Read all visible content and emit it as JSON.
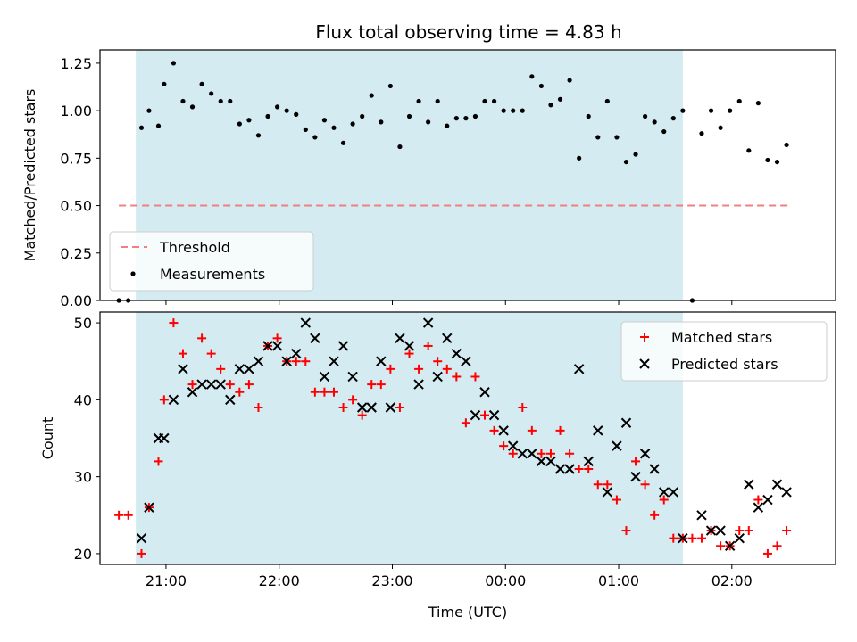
{
  "chart_data": [
    {
      "type": "scatter",
      "title": "Flux total observing time = 4.83 h",
      "xlabel": "",
      "ylabel": "Matched/Predicted stars",
      "ylim": [
        0,
        1.32
      ],
      "xlim": [
        "20:25",
        "02:55"
      ],
      "yticks": [
        0.0,
        0.25,
        0.5,
        0.75,
        1.0,
        1.25
      ],
      "ytick_labels": [
        "0.00",
        "0.25",
        "0.50",
        "0.75",
        "1.00",
        "1.25"
      ],
      "shaded_interval": [
        "20:44",
        "01:34"
      ],
      "shade_color": "#d3ebf1",
      "legend_position": "lower-left",
      "threshold": {
        "name": "Threshold",
        "value": 0.5,
        "x_range": [
          "20:35",
          "02:30"
        ],
        "color": "#f08080",
        "style": "dashed"
      },
      "series": [
        {
          "name": "Measurements",
          "color": "#000000",
          "marker": "dot",
          "x": [
            "20:35",
            "20:40",
            "20:47",
            "20:51",
            "20:56",
            "20:59",
            "21:04",
            "21:09",
            "21:14",
            "21:19",
            "21:24",
            "21:29",
            "21:34",
            "21:39",
            "21:44",
            "21:49",
            "21:54",
            "21:59",
            "22:04",
            "22:09",
            "22:14",
            "22:19",
            "22:24",
            "22:29",
            "22:34",
            "22:39",
            "22:44",
            "22:49",
            "22:54",
            "22:59",
            "23:04",
            "23:09",
            "23:14",
            "23:19",
            "23:24",
            "23:29",
            "23:34",
            "23:39",
            "23:44",
            "23:49",
            "23:54",
            "23:59",
            "00:04",
            "00:09",
            "00:14",
            "00:19",
            "00:24",
            "00:29",
            "00:34",
            "00:39",
            "00:44",
            "00:49",
            "00:54",
            "00:59",
            "01:04",
            "01:09",
            "01:14",
            "01:19",
            "01:24",
            "01:29",
            "01:34",
            "01:39",
            "01:44",
            "01:49",
            "01:54",
            "01:59",
            "02:04",
            "02:09",
            "02:14",
            "02:19",
            "02:24",
            "02:29"
          ],
          "y": [
            0.0,
            0.0,
            0.91,
            1.0,
            0.92,
            1.14,
            1.25,
            1.05,
            1.02,
            1.14,
            1.09,
            1.05,
            1.05,
            0.93,
            0.95,
            0.87,
            0.97,
            1.02,
            1.0,
            0.98,
            0.9,
            0.86,
            0.95,
            0.91,
            0.83,
            0.93,
            0.97,
            1.08,
            0.94,
            1.13,
            0.81,
            0.97,
            1.05,
            0.94,
            1.05,
            0.92,
            0.96,
            0.96,
            0.97,
            1.05,
            1.05,
            1.0,
            1.0,
            1.0,
            1.18,
            1.13,
            1.03,
            1.06,
            1.16,
            0.75,
            0.97,
            0.86,
            1.05,
            0.86,
            0.73,
            0.77,
            0.97,
            0.94,
            0.89,
            0.96,
            1.0,
            0.0,
            0.88,
            1.0,
            0.91,
            1.0,
            1.05,
            0.79,
            1.04,
            0.74,
            0.73,
            0.82
          ]
        }
      ]
    },
    {
      "type": "scatter",
      "title": "",
      "xlabel": "Time (UTC)",
      "ylabel": "Count",
      "ylim": [
        18.6,
        51.4
      ],
      "xlim": [
        "20:25",
        "02:55"
      ],
      "yticks": [
        20,
        30,
        40,
        50
      ],
      "ytick_labels": [
        "20",
        "30",
        "40",
        "50"
      ],
      "xticks": [
        "21:00",
        "22:00",
        "23:00",
        "00:00",
        "01:00",
        "02:00"
      ],
      "xtick_labels": [
        "21:00",
        "22:00",
        "23:00",
        "00:00",
        "01:00",
        "02:00"
      ],
      "shaded_interval": [
        "20:44",
        "01:34"
      ],
      "shade_color": "#d3ebf1",
      "legend_position": "top-right",
      "series": [
        {
          "name": "Matched stars",
          "color": "#ff0000",
          "marker": "plus",
          "x": [
            "20:35",
            "20:40",
            "20:47",
            "20:51",
            "20:56",
            "20:59",
            "21:04",
            "21:09",
            "21:14",
            "21:19",
            "21:24",
            "21:29",
            "21:34",
            "21:39",
            "21:44",
            "21:49",
            "21:54",
            "21:59",
            "22:04",
            "22:09",
            "22:14",
            "22:19",
            "22:24",
            "22:29",
            "22:34",
            "22:39",
            "22:44",
            "22:49",
            "22:54",
            "22:59",
            "23:04",
            "23:09",
            "23:14",
            "23:19",
            "23:24",
            "23:29",
            "23:34",
            "23:39",
            "23:44",
            "23:49",
            "23:54",
            "23:59",
            "00:04",
            "00:09",
            "00:14",
            "00:19",
            "00:24",
            "00:29",
            "00:34",
            "00:39",
            "00:44",
            "00:49",
            "00:54",
            "00:59",
            "01:04",
            "01:09",
            "01:14",
            "01:19",
            "01:24",
            "01:29",
            "01:34",
            "01:39",
            "01:44",
            "01:49",
            "01:54",
            "01:59",
            "02:04",
            "02:09",
            "02:14",
            "02:19",
            "02:24",
            "02:29"
          ],
          "y": [
            25,
            25,
            20,
            26,
            32,
            40,
            50,
            46,
            42,
            48,
            46,
            44,
            42,
            41,
            42,
            39,
            47,
            48,
            45,
            45,
            45,
            41,
            41,
            41,
            39,
            40,
            38,
            42,
            42,
            44,
            39,
            46,
            44,
            47,
            45,
            44,
            43,
            37,
            43,
            38,
            36,
            34,
            33,
            39,
            36,
            33,
            33,
            36,
            33,
            31,
            31,
            29,
            29,
            27,
            23,
            32,
            29,
            25,
            27,
            22,
            22,
            22,
            22,
            23,
            21,
            21,
            23,
            23,
            27,
            20,
            21,
            23
          ]
        },
        {
          "name": "Predicted stars",
          "color": "#000000",
          "marker": "x",
          "x": [
            "20:47",
            "20:51",
            "20:56",
            "20:59",
            "21:04",
            "21:09",
            "21:14",
            "21:19",
            "21:24",
            "21:29",
            "21:34",
            "21:39",
            "21:44",
            "21:49",
            "21:54",
            "21:59",
            "22:04",
            "22:09",
            "22:14",
            "22:19",
            "22:24",
            "22:29",
            "22:34",
            "22:39",
            "22:44",
            "22:49",
            "22:54",
            "22:59",
            "23:04",
            "23:09",
            "23:14",
            "23:19",
            "23:24",
            "23:29",
            "23:34",
            "23:39",
            "23:44",
            "23:49",
            "23:54",
            "23:59",
            "00:04",
            "00:09",
            "00:14",
            "00:19",
            "00:24",
            "00:29",
            "00:34",
            "00:39",
            "00:44",
            "00:49",
            "00:54",
            "00:59",
            "01:04",
            "01:09",
            "01:14",
            "01:19",
            "01:24",
            "01:29",
            "01:34",
            "01:44",
            "01:49",
            "01:54",
            "01:59",
            "02:04",
            "02:09",
            "02:14",
            "02:19",
            "02:24",
            "02:29"
          ],
          "y": [
            22,
            26,
            35,
            35,
            40,
            44,
            41,
            42,
            42,
            42,
            40,
            44,
            44,
            45,
            47,
            47,
            45,
            46,
            50,
            48,
            43,
            45,
            47,
            43,
            39,
            39,
            45,
            39,
            48,
            47,
            42,
            50,
            43,
            48,
            46,
            45,
            38,
            41,
            38,
            36,
            34,
            33,
            33,
            32,
            32,
            31,
            31,
            44,
            32,
            36,
            28,
            34,
            37,
            30,
            33,
            31,
            28,
            28,
            22,
            25,
            23,
            23,
            21,
            22,
            29,
            26,
            27,
            29,
            28
          ]
        }
      ]
    }
  ]
}
